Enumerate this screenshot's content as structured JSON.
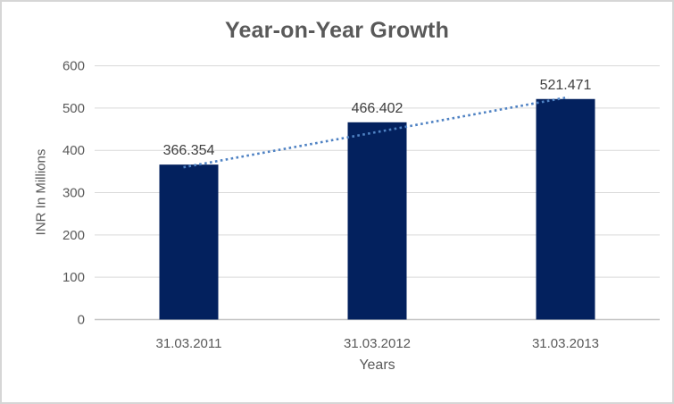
{
  "chart_data": {
    "type": "bar",
    "title": "Year-on-Year Growth",
    "xlabel": "Years",
    "ylabel": "INR In Millions",
    "categories": [
      "31.03.2011",
      "31.03.2012",
      "31.03.2013"
    ],
    "values": [
      366.354,
      466.402,
      521.471
    ],
    "data_labels": [
      "366.354",
      "466.402",
      "521.471"
    ],
    "yticks": [
      0,
      100,
      200,
      300,
      400,
      500,
      600
    ],
    "ylim": [
      0,
      600
    ],
    "grid": true,
    "legend": "none",
    "trendline": {
      "show": true,
      "style": "dotted",
      "color": "#4f82c3"
    },
    "colors": {
      "bar": "#03215e",
      "gridline": "#d9d9d9",
      "axis_line": "#c6c6c6",
      "title_text": "#595959",
      "tick_text": "#595959",
      "data_label_text": "#404040",
      "frame_border": "#d6d6d6"
    }
  }
}
